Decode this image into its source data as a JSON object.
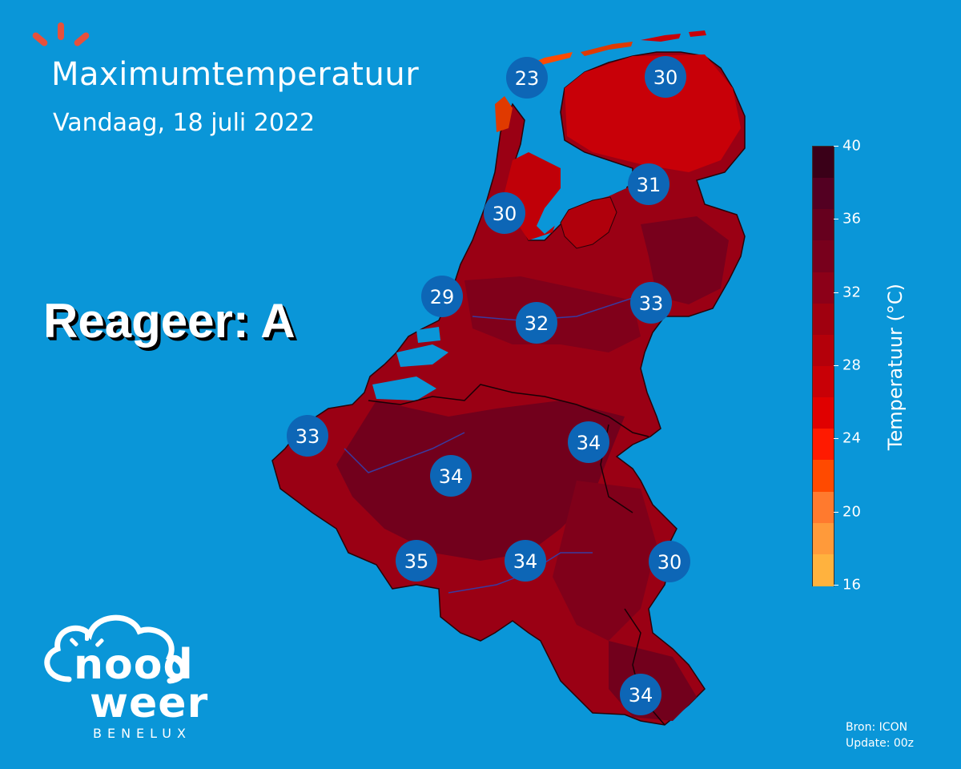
{
  "header": {
    "title": "Maximumtemperatuur",
    "subtitle": "Vandaag, 18 juli 2022"
  },
  "overlay_text": "Reageer: A",
  "legend": {
    "label": "Temperatuur (°C)",
    "ticks": [
      "40",
      "36",
      "32",
      "28",
      "24",
      "20",
      "16"
    ],
    "colors": [
      "#3a0018",
      "#530022",
      "#66001e",
      "#78001c",
      "#8c0018",
      "#a0000f",
      "#b4000a",
      "#c80006",
      "#e00000",
      "#ff1a00",
      "#ff4a00",
      "#ff7a2e",
      "#ff9a3a",
      "#ffb23e"
    ]
  },
  "cities": [
    {
      "id": "den-helder",
      "value": "23"
    },
    {
      "id": "leeuwarden",
      "value": "30"
    },
    {
      "id": "lelystad",
      "value": "31"
    },
    {
      "id": "haarlem",
      "value": "30"
    },
    {
      "id": "den-haag",
      "value": "29"
    },
    {
      "id": "utrecht",
      "value": "32"
    },
    {
      "id": "arnhem",
      "value": "33"
    },
    {
      "id": "eindhoven",
      "value": "34"
    },
    {
      "id": "brugge",
      "value": "33"
    },
    {
      "id": "brussel",
      "value": "34"
    },
    {
      "id": "mons",
      "value": "35"
    },
    {
      "id": "namen",
      "value": "34"
    },
    {
      "id": "vaals",
      "value": "30"
    },
    {
      "id": "arlon",
      "value": "34"
    }
  ],
  "source": {
    "line1": "Bron: ICON",
    "line2": "Update: 00z"
  },
  "logo": {
    "word1": "nood",
    "word2": "weer",
    "sub": "BENELUX"
  },
  "colors": {
    "background": "#0a96d8",
    "circle": "#0d66b6",
    "accent": "#e8503a"
  }
}
